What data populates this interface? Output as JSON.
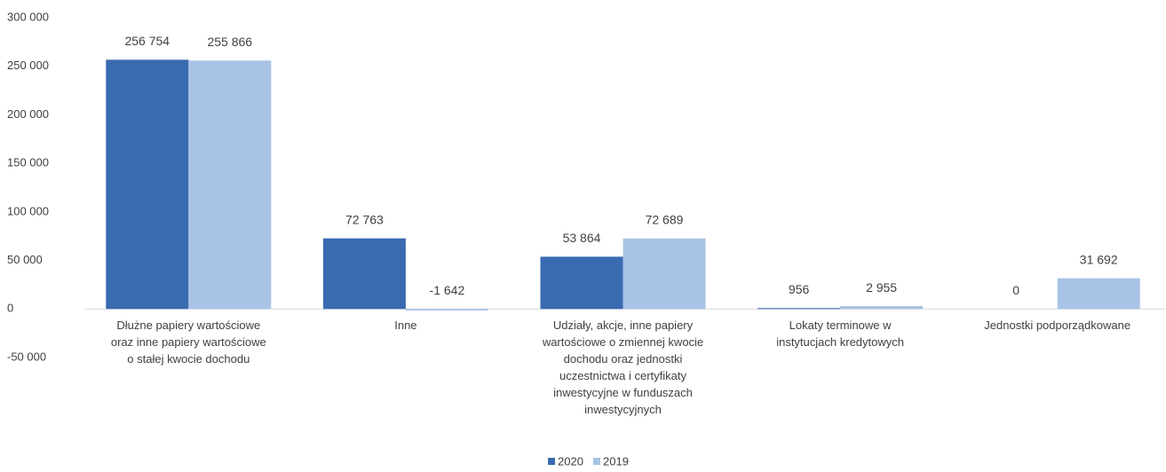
{
  "chart_data": {
    "type": "bar",
    "categories": [
      "Dłużne papiery wartościowe oraz inne papiery wartościowe o stałej kwocie dochodu",
      "Inne",
      "Udziały, akcje, inne papiery wartościowe o zmiennej kwocie dochodu oraz jednostki uczestnictwa i certyfikaty inwestycyjne w funduszach inwestycyjnych",
      "Lokaty terminowe w instytucjach kredytowych",
      "Jednostki podporządkowane"
    ],
    "series": [
      {
        "name": "2020",
        "color": "#3a6bb0",
        "values": [
          256754,
          72763,
          53864,
          956,
          0
        ],
        "value_labels": [
          "256 754",
          "72 763",
          "53 864",
          "956",
          "0"
        ]
      },
      {
        "name": "2019",
        "color": "#a9c3e6",
        "values": [
          255866,
          -1642,
          72689,
          2955,
          31692
        ],
        "value_labels": [
          "255 866",
          "-1 642",
          "72 689",
          "2 955",
          "31 692"
        ]
      }
    ],
    "ylim": [
      -50000,
      300000
    ],
    "yticks": [
      {
        "value": -50000,
        "label": "-50 000"
      },
      0,
      {
        "value": 50000,
        "label": "50 000"
      },
      {
        "value": 100000,
        "label": "100 000"
      },
      {
        "value": 150000,
        "label": "150 000"
      },
      {
        "value": 200000,
        "label": "200 000"
      },
      {
        "value": 250000,
        "label": "250 000"
      },
      {
        "value": 300000,
        "label": "300 000"
      }
    ],
    "grid": false,
    "legend": "bottom"
  }
}
